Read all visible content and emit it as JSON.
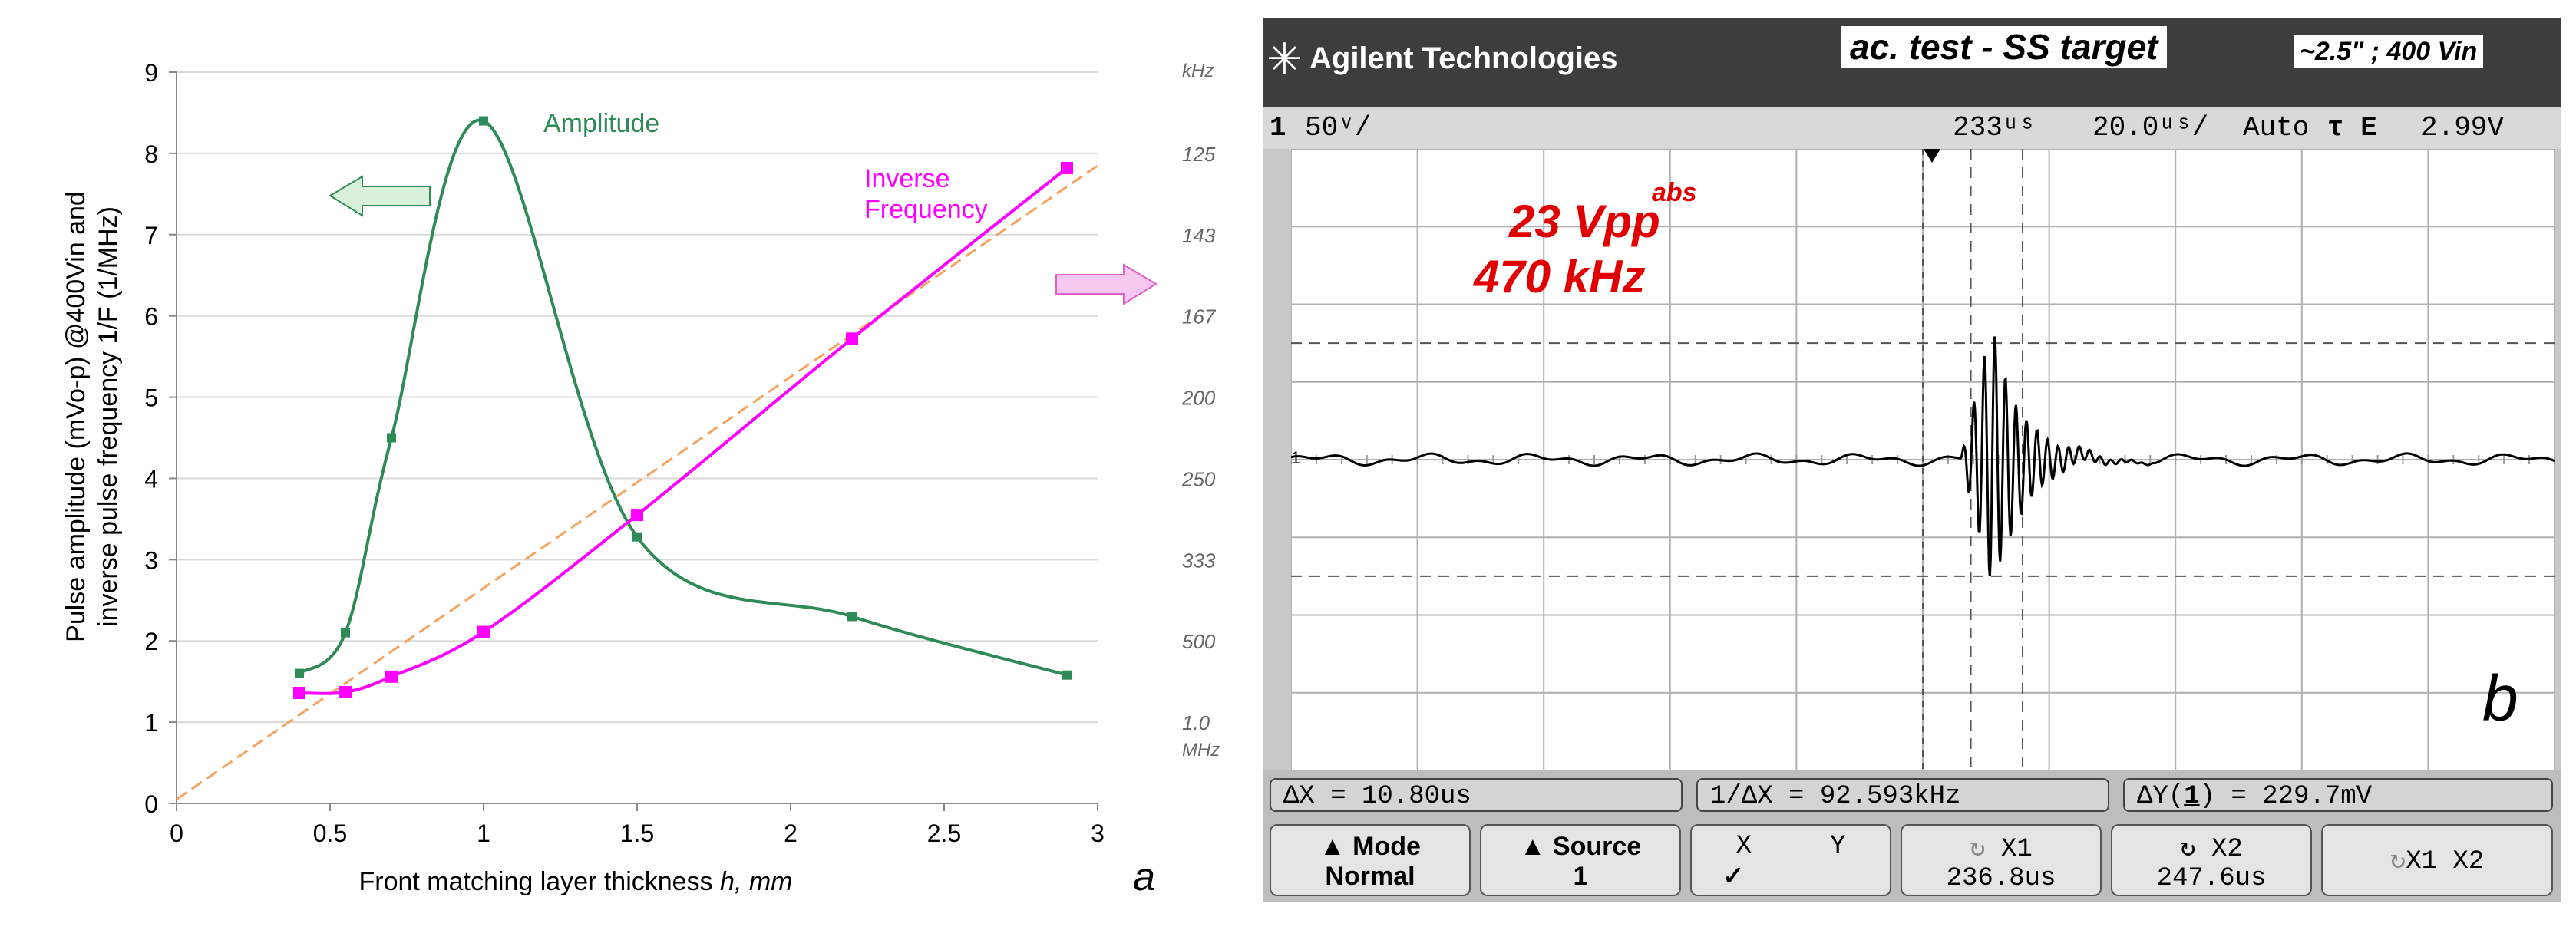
{
  "chart_data": [
    {
      "type": "line",
      "panel_label": "a",
      "xlabel_prefix": "Front matching layer thickness ",
      "xlabel_italic": "h, mm",
      "ylabel_line1": "Pulse amplitude (mVo-p) @400Vin and",
      "ylabel_line2": "inverse pulse frequency 1/F (1/MHz)",
      "xlim": [
        0,
        3
      ],
      "ylim": [
        0,
        9
      ],
      "xticks": [
        "0",
        "0.5",
        "1",
        "1.5",
        "2",
        "2.5",
        "3"
      ],
      "yticks": [
        "0",
        "1",
        "2",
        "3",
        "4",
        "5",
        "6",
        "7",
        "8",
        "9"
      ],
      "right_axis_unit_top": "kHz",
      "right_axis_unit_bottom": "MHz",
      "right_ticks": [
        {
          "label": "125",
          "y": 8
        },
        {
          "label": "143",
          "y": 7
        },
        {
          "label": "167",
          "y": 6
        },
        {
          "label": "200",
          "y": 5
        },
        {
          "label": "250",
          "y": 4
        },
        {
          "label": "333",
          "y": 3
        },
        {
          "label": "500",
          "y": 2
        },
        {
          "label": "1.0",
          "y": 1
        }
      ],
      "series": [
        {
          "name": "Amplitude",
          "color": "#2e8b57",
          "x": [
            0.4,
            0.55,
            0.7,
            1.0,
            1.5,
            2.2,
            2.9
          ],
          "y": [
            1.6,
            2.1,
            4.5,
            8.4,
            3.28,
            2.3,
            1.58
          ]
        },
        {
          "name": "Inverse Frequency",
          "label_line1": "Inverse",
          "label_line2": "Frequency",
          "color": "#ff00ff",
          "x": [
            0.4,
            0.55,
            0.7,
            1.0,
            1.5,
            2.2,
            2.9
          ],
          "y": [
            1.36,
            1.37,
            1.56,
            2.11,
            3.55,
            5.72,
            7.82
          ]
        }
      ],
      "reference_line": {
        "color": "#f4a460",
        "x": [
          0.0,
          3.0
        ],
        "y": [
          0.05,
          7.85
        ]
      },
      "arrows": [
        {
          "direction": "left",
          "color": "#2e8b57"
        },
        {
          "direction": "right",
          "color": "#ff00ff"
        }
      ]
    },
    {
      "type": "line",
      "panel_label": "b",
      "description": "oscilloscope waveform",
      "brand": "Agilent Technologies",
      "title": "ac. test - SS target",
      "subtitle": "~2.5\" ; 400 Vin",
      "status": {
        "channel": "1",
        "vdiv": "50ᵛ/",
        "delay": "233ᵘˢ",
        "tdiv": "20.0ᵘˢ/",
        "trigger_mode": "Auto",
        "trigger_icon": "τ E",
        "trigger_level": "2.99V"
      },
      "annotation_abs": "abs",
      "annotation_vpp": "23 Vpp",
      "annotation_freq": "470 kHz",
      "ground_marker": "1",
      "measurements": {
        "dx": "ΔX = 10.80us",
        "inv_dx": "1/ΔX = 92.593kHz",
        "dy_prefix": "ΔY(",
        "dy_channel": "1",
        "dy_suffix": ") = 229.7mV"
      },
      "softkeys": {
        "mode_label": "Mode",
        "mode_value": "Normal",
        "source_label": "Source",
        "source_value": "1",
        "xy_x": "X",
        "xy_y": "Y",
        "xy_check": "✓",
        "x1_label": "X1",
        "x1_value": "236.8us",
        "x2_label": "X2",
        "x2_value": "247.6us",
        "x1x2_label": "X1 X2"
      },
      "grid": {
        "hdiv": 10,
        "vdiv": 8
      },
      "waveform": {
        "baseline_div": 0,
        "burst_start_div": 5.3,
        "burst_peak_div": 5.55,
        "burst_end_div": 6.25,
        "burst_amplitude_div": 1.7,
        "noise_amplitude_div": 0.08
      },
      "cursors_div": [
        5.38,
        5.79
      ],
      "dashed_levels_div": [
        1.5,
        -1.5
      ]
    }
  ]
}
